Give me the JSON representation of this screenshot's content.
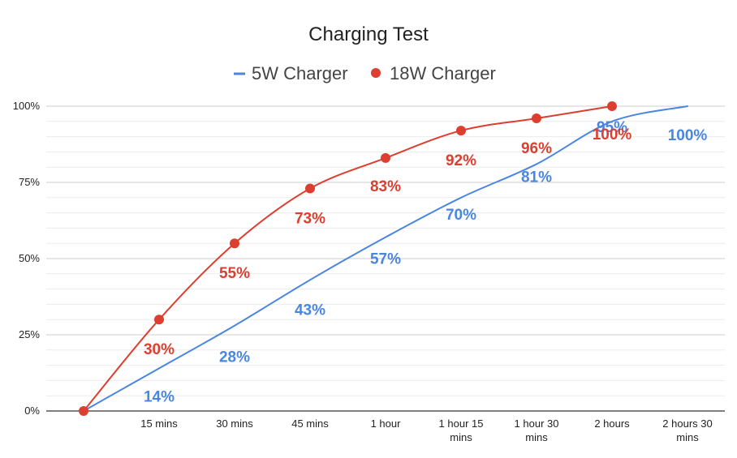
{
  "chart_data": {
    "type": "line",
    "title": "Charging Test",
    "xlabel": "",
    "ylabel": "",
    "ylim": [
      0,
      100
    ],
    "y_ticks": [
      {
        "value": 0,
        "label": "0%"
      },
      {
        "value": 25,
        "label": "25%"
      },
      {
        "value": 50,
        "label": "50%"
      },
      {
        "value": 75,
        "label": "75%"
      },
      {
        "value": 100,
        "label": "100%"
      }
    ],
    "categories": [
      "",
      "15 mins",
      "30 mins",
      "45 mins",
      "1 hour",
      "1 hour 15 mins",
      "1 hour 30 mins",
      "2 hours",
      "2 hours 30 mins"
    ],
    "series": [
      {
        "name": "5W Charger",
        "color": "#4a86e0",
        "marker": "none",
        "values": [
          0,
          14,
          28,
          43,
          57,
          70,
          81,
          95,
          100
        ],
        "labels": [
          "",
          "14%",
          "28%",
          "43%",
          "57%",
          "70%",
          "81%",
          "95%",
          "100%"
        ]
      },
      {
        "name": "18W Charger",
        "color": "#dc3e2f",
        "marker": "circle",
        "values": [
          0,
          30,
          55,
          73,
          83,
          92,
          96,
          100,
          null
        ],
        "labels": [
          "",
          "30%",
          "55%",
          "73%",
          "83%",
          "92%",
          "96%",
          "100%",
          ""
        ]
      }
    ],
    "legend_position": "top",
    "grid": true
  }
}
